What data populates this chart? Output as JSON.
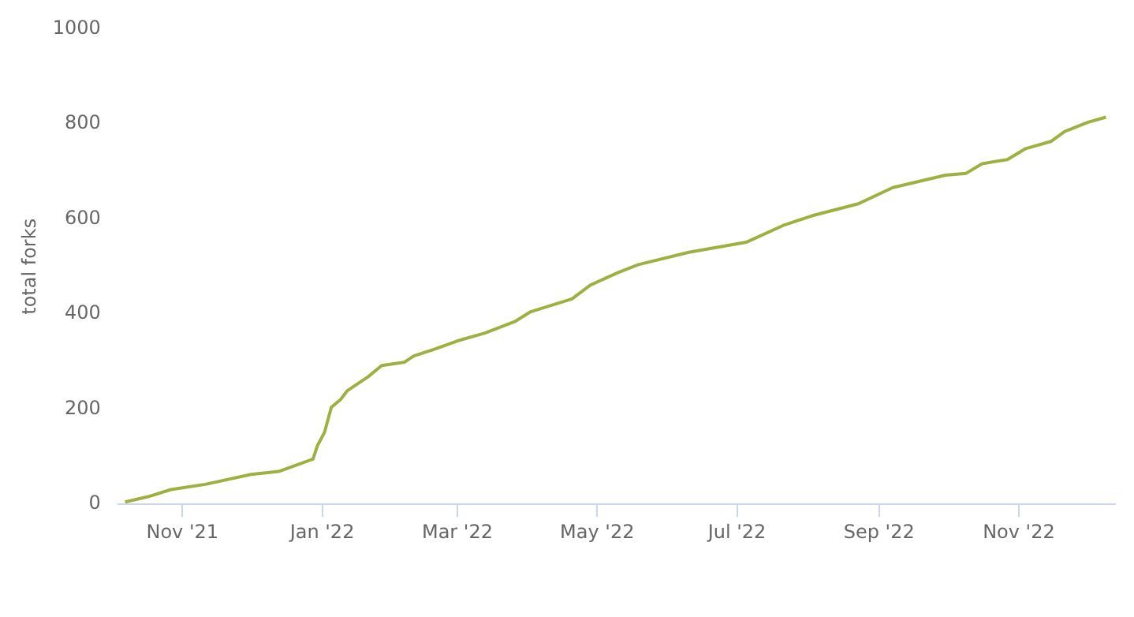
{
  "chart_data": {
    "type": "line",
    "ylabel": "total forks",
    "x": [
      "2021-10-07",
      "2021-10-17",
      "2021-10-27",
      "2021-11-11",
      "2021-12-01",
      "2021-12-13",
      "2021-12-28",
      "2021-12-30",
      "2022-01-02",
      "2022-01-05",
      "2022-01-09",
      "2022-01-12",
      "2022-01-21",
      "2022-01-27",
      "2022-02-06",
      "2022-02-10",
      "2022-02-19",
      "2022-03-02",
      "2022-03-13",
      "2022-03-26",
      "2022-04-02",
      "2022-04-20",
      "2022-04-28",
      "2022-05-10",
      "2022-05-19",
      "2022-06-10",
      "2022-07-05",
      "2022-07-21",
      "2022-08-03",
      "2022-08-23",
      "2022-09-07",
      "2022-09-30",
      "2022-10-09",
      "2022-10-16",
      "2022-10-27",
      "2022-11-04",
      "2022-11-15",
      "2022-11-21",
      "2022-12-01",
      "2022-12-09"
    ],
    "series": [
      {
        "color": "#9eb040",
        "values": [
          5,
          16,
          31,
          42,
          63,
          69,
          95,
          124,
          151,
          204,
          220,
          239,
          268,
          292,
          299,
          312,
          326,
          345,
          360,
          384,
          405,
          432,
          461,
          487,
          504,
          530,
          551,
          586,
          607,
          632,
          666,
          692,
          696,
          716,
          725,
          748,
          763,
          784,
          803,
          814
        ]
      }
    ],
    "xlim": [
      "2021-10-04",
      "2022-12-13"
    ],
    "xticks": [
      {
        "value": "2021-11-01",
        "label": "Nov '21"
      },
      {
        "value": "2022-01-01",
        "label": "Jan '22"
      },
      {
        "value": "2022-03-01",
        "label": "Mar '22"
      },
      {
        "value": "2022-05-01",
        "label": "May '22"
      },
      {
        "value": "2022-07-01",
        "label": "Jul '22"
      },
      {
        "value": "2022-09-01",
        "label": "Sep '22"
      },
      {
        "value": "2022-11-01",
        "label": "Nov '22"
      }
    ],
    "ylim": [
      0,
      1000
    ],
    "yticks": [
      0,
      200,
      400,
      600,
      800,
      1000
    ],
    "grid": false,
    "legend": false,
    "marker": "none",
    "line_style": "solid"
  }
}
